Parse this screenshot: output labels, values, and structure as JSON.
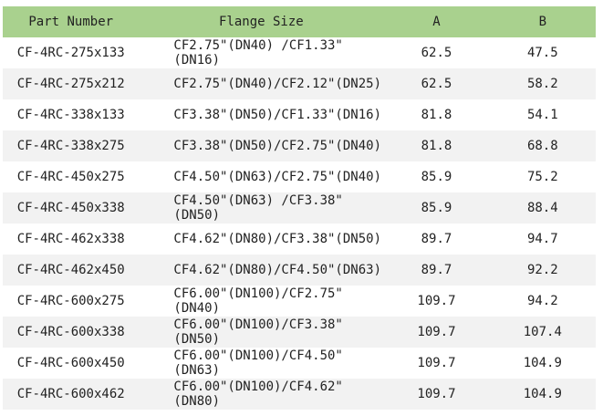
{
  "table": {
    "headers": [
      "Part Number",
      "Flange Size",
      "A",
      "B"
    ],
    "header_color": "#a9d18e",
    "stripe_color": "#f2f2f2",
    "rows": [
      [
        "CF-4RC-275x133",
        "CF2.75\"(DN40) /CF1.33\"(DN16)",
        "62.5",
        "47.5"
      ],
      [
        "CF-4RC-275x212",
        "CF2.75\"(DN40)/CF2.12\"(DN25)",
        "62.5",
        "58.2"
      ],
      [
        "CF-4RC-338x133",
        "CF3.38\"(DN50)/CF1.33\"(DN16)",
        "81.8",
        "54.1"
      ],
      [
        "CF-4RC-338x275",
        "CF3.38\"(DN50)/CF2.75\"(DN40)",
        "81.8",
        "68.8"
      ],
      [
        "CF-4RC-450x275",
        "CF4.50\"(DN63)/CF2.75\"(DN40)",
        "85.9",
        "75.2"
      ],
      [
        "CF-4RC-450x338",
        "CF4.50\"(DN63) /CF3.38\"(DN50)",
        "85.9",
        "88.4"
      ],
      [
        "CF-4RC-462x338",
        "CF4.62\"(DN80)/CF3.38\"(DN50)",
        "89.7",
        "94.7"
      ],
      [
        "CF-4RC-462x450",
        "CF4.62\"(DN80)/CF4.50\"(DN63)",
        "89.7",
        "92.2"
      ],
      [
        "CF-4RC-600x275",
        "CF6.00\"(DN100)/CF2.75\"(DN40)",
        "109.7",
        "94.2"
      ],
      [
        "CF-4RC-600x338",
        "CF6.00\"(DN100)/CF3.38\"(DN50)",
        "109.7",
        "107.4"
      ],
      [
        "CF-4RC-600x450",
        "CF6.00\"(DN100)/CF4.50\"(DN63)",
        "109.7",
        "104.9"
      ],
      [
        "CF-4RC-600x462",
        "CF6.00\"(DN100)/CF4.62\"(DN80)",
        "109.7",
        "104.9"
      ]
    ]
  }
}
